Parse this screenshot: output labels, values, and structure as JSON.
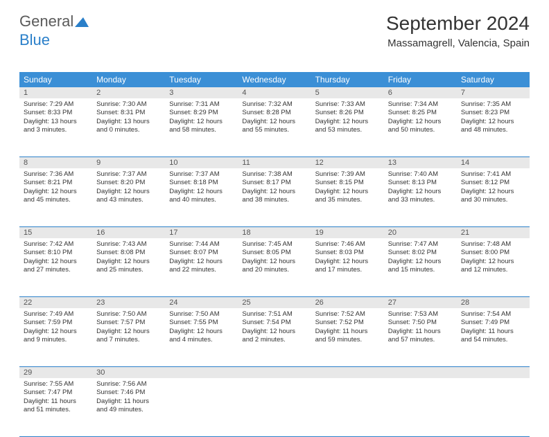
{
  "logo": {
    "part1": "General",
    "part2": "Blue"
  },
  "header": {
    "month_title": "September 2024",
    "location": "Massamagrell, Valencia, Spain"
  },
  "colors": {
    "header_bg": "#3b8fd6",
    "header_text": "#ffffff",
    "daynum_bg": "#e8e8e8",
    "border": "#2a7fc9",
    "text": "#333333",
    "logo_gray": "#5a5a5a",
    "logo_blue": "#2a7fc9"
  },
  "day_names": [
    "Sunday",
    "Monday",
    "Tuesday",
    "Wednesday",
    "Thursday",
    "Friday",
    "Saturday"
  ],
  "weeks": [
    [
      {
        "n": "1",
        "sunrise": "Sunrise: 7:29 AM",
        "sunset": "Sunset: 8:33 PM",
        "day1": "Daylight: 13 hours",
        "day2": "and 3 minutes."
      },
      {
        "n": "2",
        "sunrise": "Sunrise: 7:30 AM",
        "sunset": "Sunset: 8:31 PM",
        "day1": "Daylight: 13 hours",
        "day2": "and 0 minutes."
      },
      {
        "n": "3",
        "sunrise": "Sunrise: 7:31 AM",
        "sunset": "Sunset: 8:29 PM",
        "day1": "Daylight: 12 hours",
        "day2": "and 58 minutes."
      },
      {
        "n": "4",
        "sunrise": "Sunrise: 7:32 AM",
        "sunset": "Sunset: 8:28 PM",
        "day1": "Daylight: 12 hours",
        "day2": "and 55 minutes."
      },
      {
        "n": "5",
        "sunrise": "Sunrise: 7:33 AM",
        "sunset": "Sunset: 8:26 PM",
        "day1": "Daylight: 12 hours",
        "day2": "and 53 minutes."
      },
      {
        "n": "6",
        "sunrise": "Sunrise: 7:34 AM",
        "sunset": "Sunset: 8:25 PM",
        "day1": "Daylight: 12 hours",
        "day2": "and 50 minutes."
      },
      {
        "n": "7",
        "sunrise": "Sunrise: 7:35 AM",
        "sunset": "Sunset: 8:23 PM",
        "day1": "Daylight: 12 hours",
        "day2": "and 48 minutes."
      }
    ],
    [
      {
        "n": "8",
        "sunrise": "Sunrise: 7:36 AM",
        "sunset": "Sunset: 8:21 PM",
        "day1": "Daylight: 12 hours",
        "day2": "and 45 minutes."
      },
      {
        "n": "9",
        "sunrise": "Sunrise: 7:37 AM",
        "sunset": "Sunset: 8:20 PM",
        "day1": "Daylight: 12 hours",
        "day2": "and 43 minutes."
      },
      {
        "n": "10",
        "sunrise": "Sunrise: 7:37 AM",
        "sunset": "Sunset: 8:18 PM",
        "day1": "Daylight: 12 hours",
        "day2": "and 40 minutes."
      },
      {
        "n": "11",
        "sunrise": "Sunrise: 7:38 AM",
        "sunset": "Sunset: 8:17 PM",
        "day1": "Daylight: 12 hours",
        "day2": "and 38 minutes."
      },
      {
        "n": "12",
        "sunrise": "Sunrise: 7:39 AM",
        "sunset": "Sunset: 8:15 PM",
        "day1": "Daylight: 12 hours",
        "day2": "and 35 minutes."
      },
      {
        "n": "13",
        "sunrise": "Sunrise: 7:40 AM",
        "sunset": "Sunset: 8:13 PM",
        "day1": "Daylight: 12 hours",
        "day2": "and 33 minutes."
      },
      {
        "n": "14",
        "sunrise": "Sunrise: 7:41 AM",
        "sunset": "Sunset: 8:12 PM",
        "day1": "Daylight: 12 hours",
        "day2": "and 30 minutes."
      }
    ],
    [
      {
        "n": "15",
        "sunrise": "Sunrise: 7:42 AM",
        "sunset": "Sunset: 8:10 PM",
        "day1": "Daylight: 12 hours",
        "day2": "and 27 minutes."
      },
      {
        "n": "16",
        "sunrise": "Sunrise: 7:43 AM",
        "sunset": "Sunset: 8:08 PM",
        "day1": "Daylight: 12 hours",
        "day2": "and 25 minutes."
      },
      {
        "n": "17",
        "sunrise": "Sunrise: 7:44 AM",
        "sunset": "Sunset: 8:07 PM",
        "day1": "Daylight: 12 hours",
        "day2": "and 22 minutes."
      },
      {
        "n": "18",
        "sunrise": "Sunrise: 7:45 AM",
        "sunset": "Sunset: 8:05 PM",
        "day1": "Daylight: 12 hours",
        "day2": "and 20 minutes."
      },
      {
        "n": "19",
        "sunrise": "Sunrise: 7:46 AM",
        "sunset": "Sunset: 8:03 PM",
        "day1": "Daylight: 12 hours",
        "day2": "and 17 minutes."
      },
      {
        "n": "20",
        "sunrise": "Sunrise: 7:47 AM",
        "sunset": "Sunset: 8:02 PM",
        "day1": "Daylight: 12 hours",
        "day2": "and 15 minutes."
      },
      {
        "n": "21",
        "sunrise": "Sunrise: 7:48 AM",
        "sunset": "Sunset: 8:00 PM",
        "day1": "Daylight: 12 hours",
        "day2": "and 12 minutes."
      }
    ],
    [
      {
        "n": "22",
        "sunrise": "Sunrise: 7:49 AM",
        "sunset": "Sunset: 7:59 PM",
        "day1": "Daylight: 12 hours",
        "day2": "and 9 minutes."
      },
      {
        "n": "23",
        "sunrise": "Sunrise: 7:50 AM",
        "sunset": "Sunset: 7:57 PM",
        "day1": "Daylight: 12 hours",
        "day2": "and 7 minutes."
      },
      {
        "n": "24",
        "sunrise": "Sunrise: 7:50 AM",
        "sunset": "Sunset: 7:55 PM",
        "day1": "Daylight: 12 hours",
        "day2": "and 4 minutes."
      },
      {
        "n": "25",
        "sunrise": "Sunrise: 7:51 AM",
        "sunset": "Sunset: 7:54 PM",
        "day1": "Daylight: 12 hours",
        "day2": "and 2 minutes."
      },
      {
        "n": "26",
        "sunrise": "Sunrise: 7:52 AM",
        "sunset": "Sunset: 7:52 PM",
        "day1": "Daylight: 11 hours",
        "day2": "and 59 minutes."
      },
      {
        "n": "27",
        "sunrise": "Sunrise: 7:53 AM",
        "sunset": "Sunset: 7:50 PM",
        "day1": "Daylight: 11 hours",
        "day2": "and 57 minutes."
      },
      {
        "n": "28",
        "sunrise": "Sunrise: 7:54 AM",
        "sunset": "Sunset: 7:49 PM",
        "day1": "Daylight: 11 hours",
        "day2": "and 54 minutes."
      }
    ],
    [
      {
        "n": "29",
        "sunrise": "Sunrise: 7:55 AM",
        "sunset": "Sunset: 7:47 PM",
        "day1": "Daylight: 11 hours",
        "day2": "and 51 minutes."
      },
      {
        "n": "30",
        "sunrise": "Sunrise: 7:56 AM",
        "sunset": "Sunset: 7:46 PM",
        "day1": "Daylight: 11 hours",
        "day2": "and 49 minutes."
      },
      null,
      null,
      null,
      null,
      null
    ]
  ]
}
